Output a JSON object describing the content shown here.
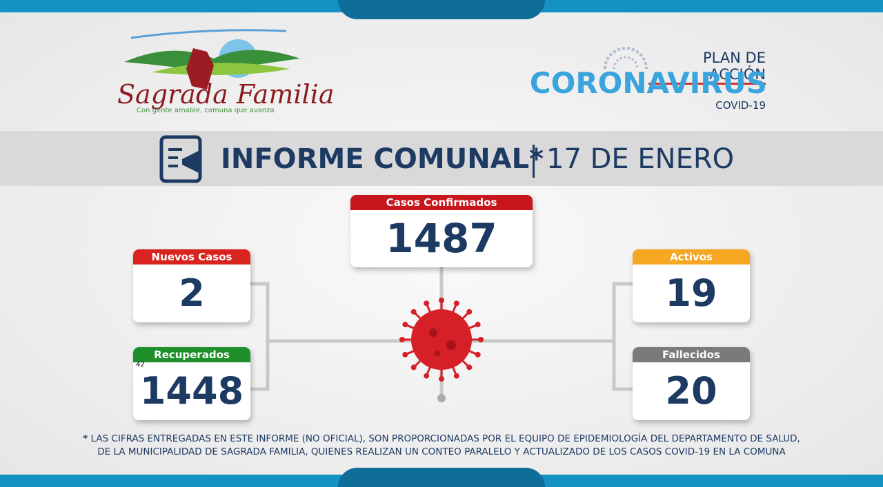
{
  "logo": {
    "name": "Sagrada Familia",
    "tagline": "Con gente amable, comuna que avanza"
  },
  "campaign": {
    "kicker": "PLAN DE ACCIÓN",
    "title": "CORONAVIRUS",
    "subtitle": "COVID-19"
  },
  "header": {
    "title": "INFORME COMUNAL*",
    "date": "17 DE ENERO"
  },
  "cards": {
    "confirmed": {
      "label": "Casos Confirmados",
      "value": 1487
    },
    "new": {
      "label": "Nuevos Casos",
      "value": 2
    },
    "recovered": {
      "label": "Recuperados",
      "value": 1448,
      "note": "42"
    },
    "active": {
      "label": "Activos",
      "value": 19
    },
    "deceased": {
      "label": "Fallecidos",
      "value": 20
    }
  },
  "footnote": {
    "marker": "*",
    "lines": [
      "LAS CIFRAS ENTREGADAS EN ESTE INFORME (NO  OFICIAL),  SON PROPORCIONADAS POR EL EQUIPO DE EPIDEMIOLOGÍA DEL DEPARTAMENTO DE SALUD,",
      "DE LA MUNICIPALIDAD DE SAGRADA FAMILIA, QUIENES REALIZAN UN CONTEO PARALELO Y ACTUALIZADO DE LOS CASOS COVID-19 EN LA COMUNA"
    ]
  }
}
